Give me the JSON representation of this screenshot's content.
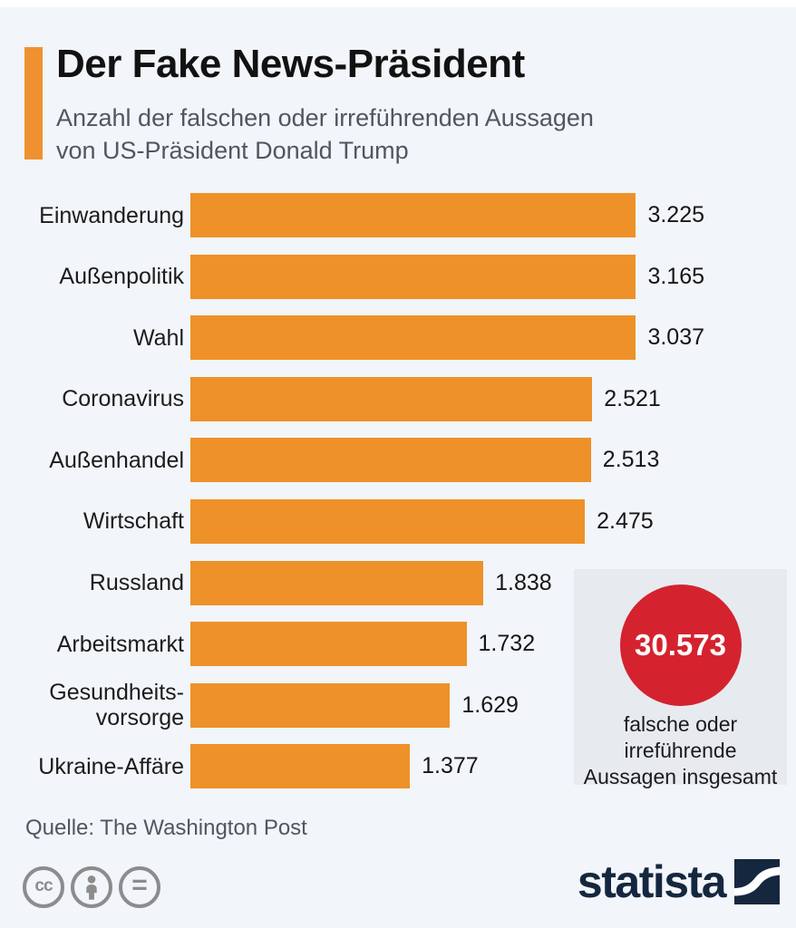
{
  "page": {
    "background": "#f2f5f9"
  },
  "header": {
    "title": "Der Fake News-Präsident",
    "subtitle": "Anzahl der falschen oder irreführenden Aussagen\nvon US-Präsident Donald Trump",
    "accent_color": "#ef9130"
  },
  "chart_data": {
    "type": "bar",
    "orientation": "horizontal",
    "title": "Der Fake News-Präsident",
    "subtitle": "Anzahl der falschen oder irreführenden Aussagen von US-Präsident Donald Trump",
    "bar_color": "#ee9129",
    "xlim": [
      0,
      3225
    ],
    "grid": false,
    "legend": false,
    "categories": [
      "Einwanderung",
      "Außenpolitik",
      "Wahl",
      "Coronavirus",
      "Außenhandel",
      "Wirtschaft",
      "Russland",
      "Arbeitsmarkt",
      "Gesundheits-\nvorsorge",
      "Ukraine-Affäre"
    ],
    "values": [
      3225,
      3165,
      3037,
      2521,
      2513,
      2475,
      1838,
      1732,
      1629,
      1377
    ],
    "rows": [
      {
        "label": "Einwanderung",
        "value": 3225,
        "display": "3.225"
      },
      {
        "label": "Außenpolitik",
        "value": 3165,
        "display": "3.165"
      },
      {
        "label": "Wahl",
        "value": 3037,
        "display": "3.037"
      },
      {
        "label": "Coronavirus",
        "value": 2521,
        "display": "2.521"
      },
      {
        "label": "Außenhandel",
        "value": 2513,
        "display": "2.513"
      },
      {
        "label": "Wirtschaft",
        "value": 2475,
        "display": "2.475"
      },
      {
        "label": "Russland",
        "value": 1838,
        "display": "1.838"
      },
      {
        "label": "Arbeitsmarkt",
        "value": 1732,
        "display": "1.732"
      },
      {
        "label": "Gesundheits-\nvorsorge",
        "value": 1629,
        "display": "1.629"
      },
      {
        "label": "Ukraine-Affäre",
        "value": 1377,
        "display": "1.377"
      }
    ],
    "annotation": {
      "total_value": 30573,
      "total_display": "30.573",
      "caption": "falsche oder irreführende Aussagen insgesamt",
      "circle_color": "#d4232e"
    }
  },
  "total_badge": {
    "value": "30.573",
    "caption_line1": "falsche oder",
    "caption_line2": "irreführende",
    "caption_line3": "Aussagen insgesamt"
  },
  "footer": {
    "source": "Quelle: The Washington Post",
    "license_icons": [
      "cc-icon",
      "attribution-person-icon",
      "equals-icon"
    ],
    "brand": "statista",
    "brand_color": "#15273f"
  }
}
